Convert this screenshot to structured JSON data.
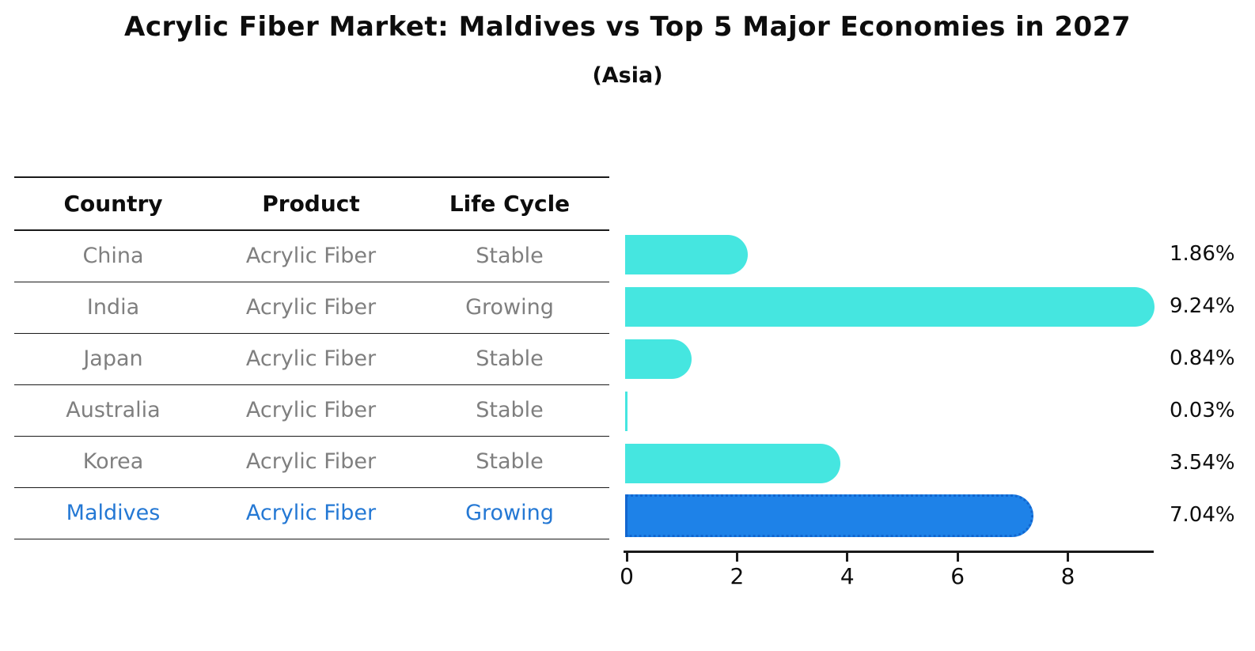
{
  "header": {
    "title": "Acrylic Fiber Market: Maldives vs Top 5 Major Economies in 2027",
    "subtitle": "(Asia)"
  },
  "table": {
    "columns": [
      "Country",
      "Product",
      "Life Cycle"
    ],
    "rows": [
      {
        "country": "China",
        "product": "Acrylic Fiber",
        "life_cycle": "Stable"
      },
      {
        "country": "India",
        "product": "Acrylic Fiber",
        "life_cycle": "Growing"
      },
      {
        "country": "Japan",
        "product": "Acrylic Fiber",
        "life_cycle": "Stable"
      },
      {
        "country": "Australia",
        "product": "Acrylic Fiber",
        "life_cycle": "Stable"
      },
      {
        "country": "Korea",
        "product": "Acrylic Fiber",
        "life_cycle": "Stable"
      },
      {
        "country": "Maldives",
        "product": "Acrylic Fiber",
        "life_cycle": "Growing"
      }
    ]
  },
  "chart_data": {
    "type": "bar",
    "orientation": "horizontal",
    "title": "Acrylic Fiber Market: Maldives vs Top 5 Major Economies in 2027",
    "subtitle": "(Asia)",
    "categories": [
      "China",
      "India",
      "Japan",
      "Australia",
      "Korea",
      "Maldives"
    ],
    "values": [
      1.86,
      9.24,
      0.84,
      0.03,
      3.54,
      7.04
    ],
    "value_labels": [
      "1.86%",
      "9.24%",
      "0.84%",
      "0.03%",
      "3.54%",
      "7.04%"
    ],
    "x_ticks": [
      0,
      2,
      4,
      6,
      8
    ],
    "xlim": [
      0,
      9.6
    ],
    "grid": false,
    "legend": "none",
    "highlight_index": 5,
    "bar_color": "#45e6e0",
    "highlight_color": "#1e82e8",
    "highlight_text_color": "#2478d4",
    "label_color": "#0d0d0d",
    "table_text_color": "#7f7f7f"
  }
}
